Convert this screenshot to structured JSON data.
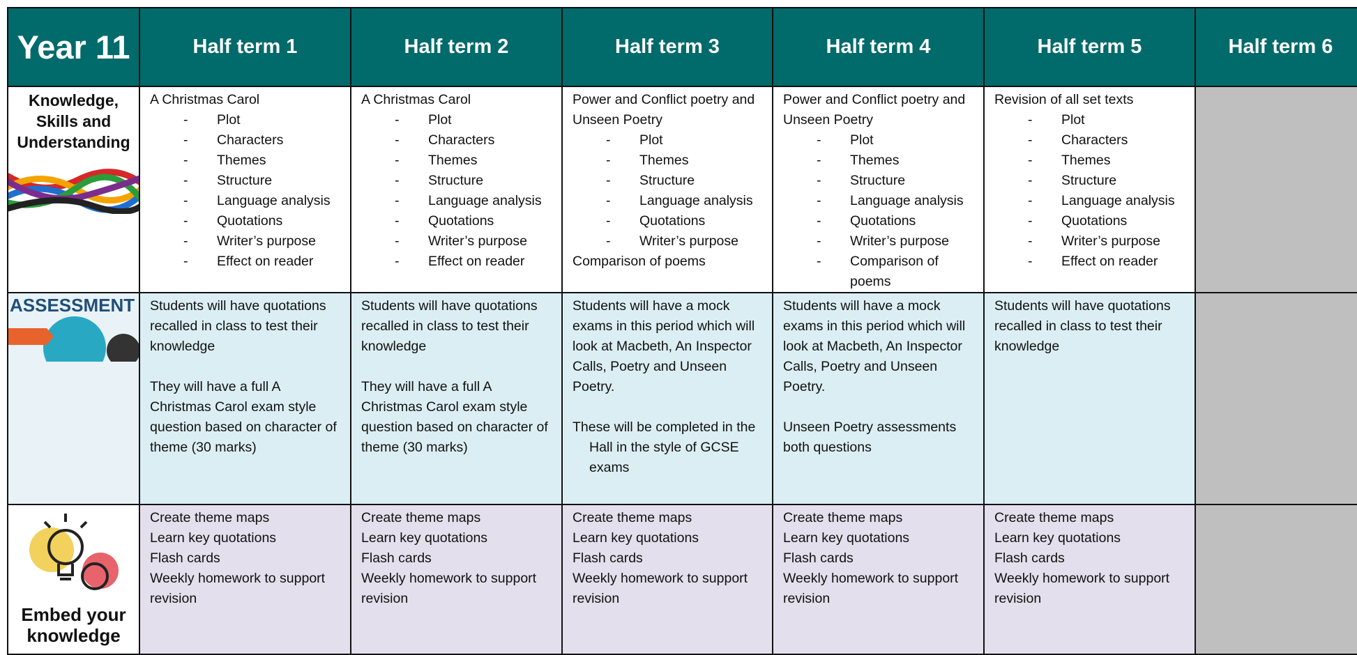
{
  "header": {
    "year": "Year 11",
    "terms": [
      "Half term 1",
      "Half term 2",
      "Half term 3",
      "Half term 4",
      "Half term 5",
      "Half term 6"
    ]
  },
  "rows": [
    {
      "label": "Knowledge, Skills and Understanding",
      "cells": [
        {
          "intro": "A Christmas Carol",
          "bullets": [
            "Plot",
            "Characters",
            "Themes",
            "Structure",
            "Language analysis",
            "Quotations",
            "Writer’s purpose",
            "Effect on reader"
          ]
        },
        {
          "intro": "A Christmas Carol",
          "bullets": [
            "Plot",
            "Characters",
            "Themes",
            "Structure",
            "Language analysis",
            "Quotations",
            "Writer’s purpose",
            "Effect on reader"
          ]
        },
        {
          "intro": "Power and Conflict poetry and Unseen Poetry",
          "bullets": [
            "Plot",
            "Themes",
            "Structure",
            "Language analysis",
            "Quotations",
            "Writer’s purpose"
          ],
          "outro": "Comparison of poems"
        },
        {
          "intro": "Power and Conflict poetry and Unseen Poetry",
          "bullets": [
            "Plot",
            "Themes",
            "Structure",
            "Language analysis",
            "Quotations",
            "Writer’s purpose",
            "Comparison of poems"
          ]
        },
        {
          "intro": "Revision of all set texts",
          "bullets": [
            "Plot",
            "Characters",
            "Themes",
            "Structure",
            "Language analysis",
            "Quotations",
            "Writer’s purpose",
            "Effect on reader"
          ]
        }
      ]
    },
    {
      "label": "ASSESSMENT",
      "cells": [
        {
          "paragraphs": [
            "Students will have quotations recalled in class to test their knowledge",
            "They will have a full A Christmas Carol exam style question based on character of theme (30 marks)"
          ]
        },
        {
          "paragraphs": [
            "Students will have quotations recalled in class to test their knowledge",
            "They will have a full A Christmas Carol exam style question based on character of theme (30 marks)"
          ]
        },
        {
          "paragraphs": [
            "Students will have a mock exams in this period which will look at Macbeth, An Inspector Calls, Poetry and Unseen Poetry.",
            "These will be completed in the Hall in the style of GCSE exams"
          ]
        },
        {
          "paragraphs": [
            "Students will have a mock exams in this period which will look at Macbeth, An Inspector Calls, Poetry and Unseen Poetry.",
            "Unseen Poetry assessments both questions"
          ]
        },
        {
          "paragraphs": [
            "Students will have quotations recalled in class to test their knowledge"
          ]
        }
      ]
    },
    {
      "label": "Embed your knowledge",
      "cells": [
        {
          "lines": [
            "Create theme maps",
            "Learn key quotations",
            "Flash cards",
            "Weekly homework to support revision"
          ]
        },
        {
          "lines": [
            "Create theme maps",
            "Learn key quotations",
            "Flash cards",
            "Weekly homework to support revision"
          ]
        },
        {
          "lines": [
            "Create theme maps",
            "Learn key quotations",
            "Flash cards",
            "Weekly homework to support revision"
          ]
        },
        {
          "lines": [
            "Create theme maps",
            "Learn key quotations",
            "Flash cards",
            "Weekly homework to support revision"
          ]
        },
        {
          "lines": [
            "Create theme maps",
            "Learn key quotations",
            "Flash cards",
            "Weekly homework to support revision"
          ]
        }
      ]
    }
  ]
}
